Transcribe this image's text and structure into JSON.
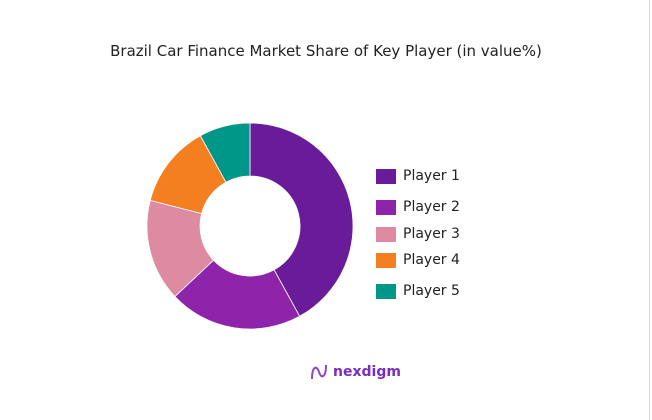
{
  "chart_data": {
    "type": "pie",
    "donut": true,
    "title": "Brazil Car Finance Market Share of Key Player (in value%)",
    "categories": [
      "Player 1",
      "Player 2",
      "Player 3",
      "Player 4",
      "Player 5"
    ],
    "values": [
      42,
      21,
      16,
      13,
      8
    ],
    "colors": [
      "#6a1b9a",
      "#8e24aa",
      "#de8aa0",
      "#f47f20",
      "#009688"
    ],
    "legend": "right"
  },
  "logo": {
    "text": "nexdigm"
  }
}
